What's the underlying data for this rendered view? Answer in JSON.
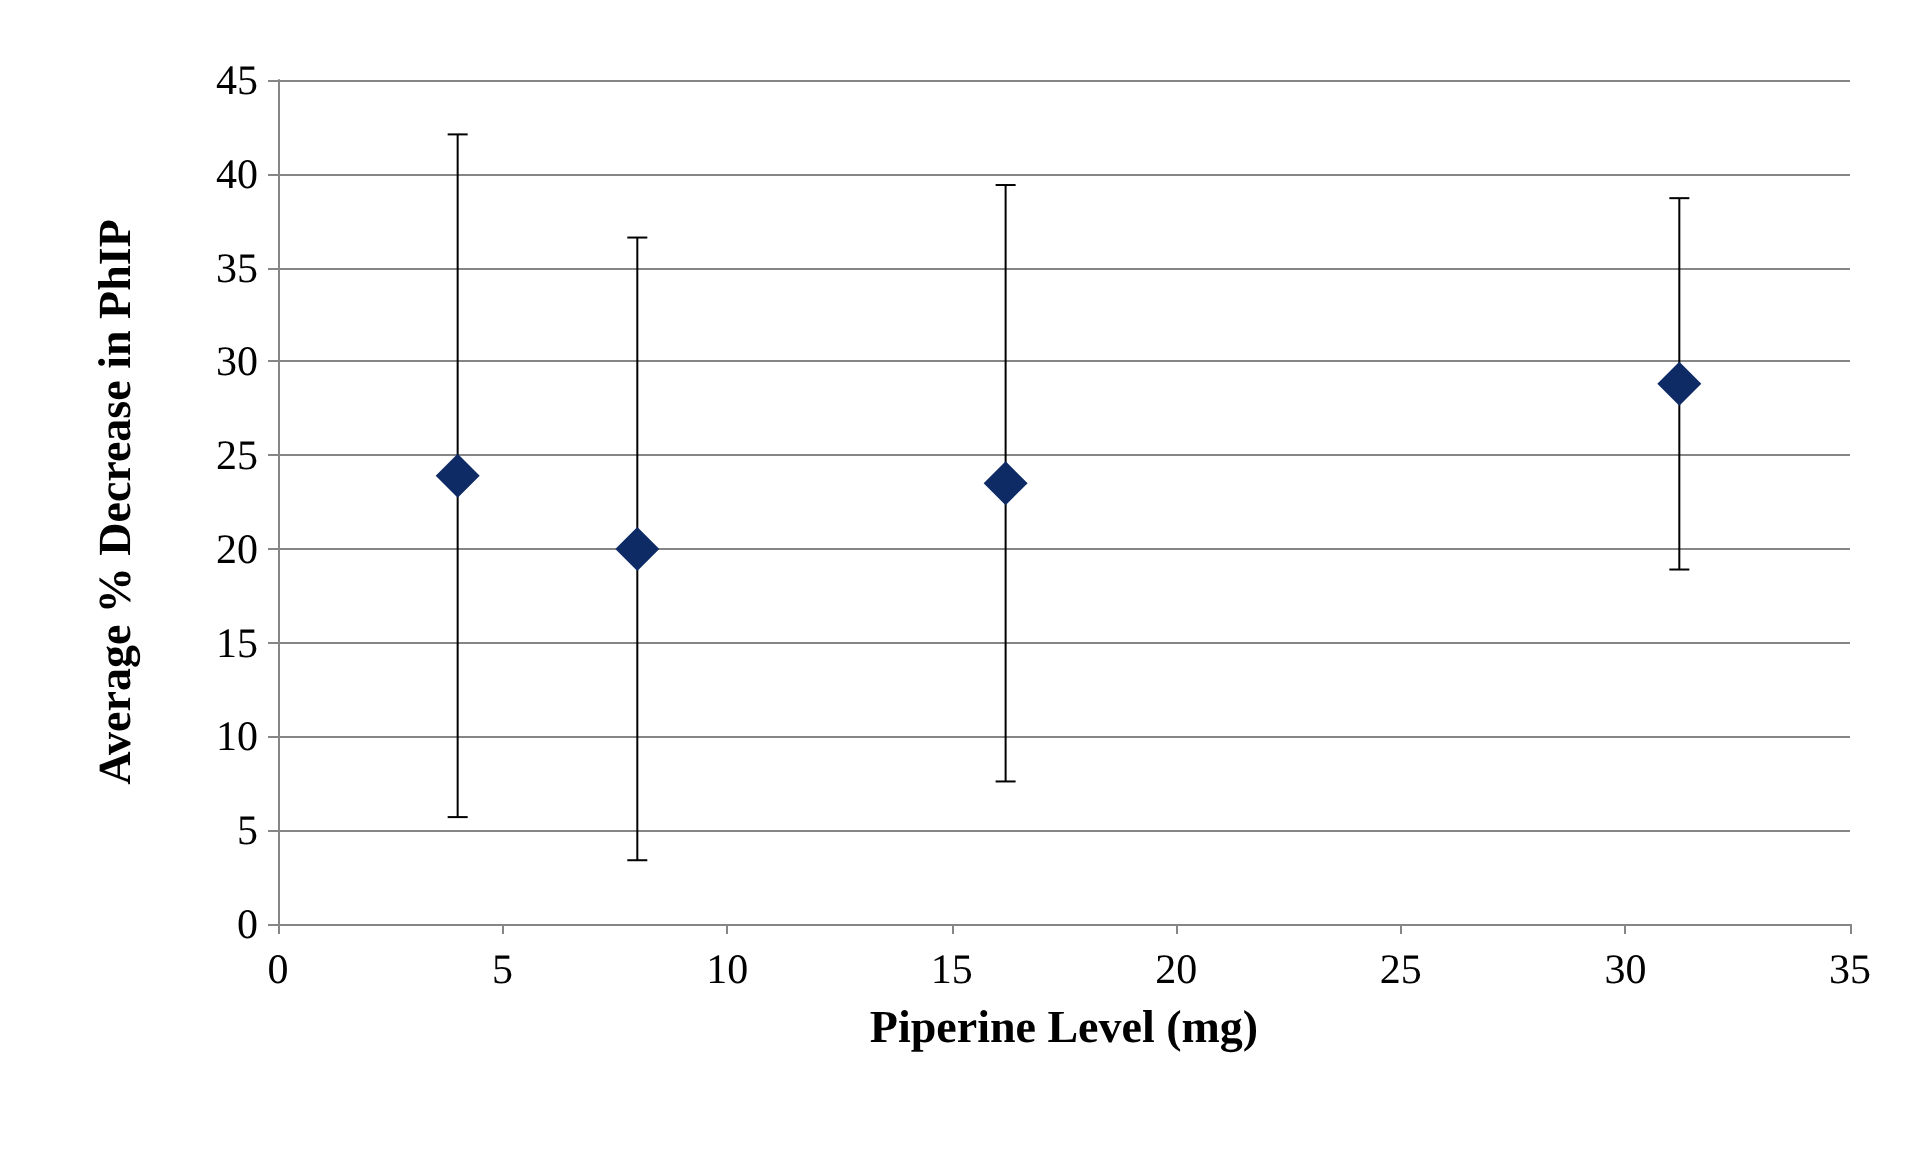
{
  "chart_data": {
    "type": "scatter",
    "xlabel": "Piperine Level (mg)",
    "ylabel": "Average % Decrease in PhIP",
    "x": [
      4,
      8,
      16.2,
      31.2
    ],
    "values": [
      23.9,
      20.0,
      23.5,
      28.8
    ],
    "errors": [
      18.2,
      16.6,
      15.9,
      9.9
    ],
    "color": "#0f2b66",
    "marker": "diamond",
    "xlim": [
      0,
      35
    ],
    "xticks": [
      0,
      5,
      10,
      15,
      20,
      25,
      30,
      35
    ],
    "ylim": [
      0,
      45
    ],
    "yticks": [
      0,
      5,
      10,
      15,
      20,
      25,
      30,
      35,
      40,
      45
    ],
    "grid": "y"
  }
}
